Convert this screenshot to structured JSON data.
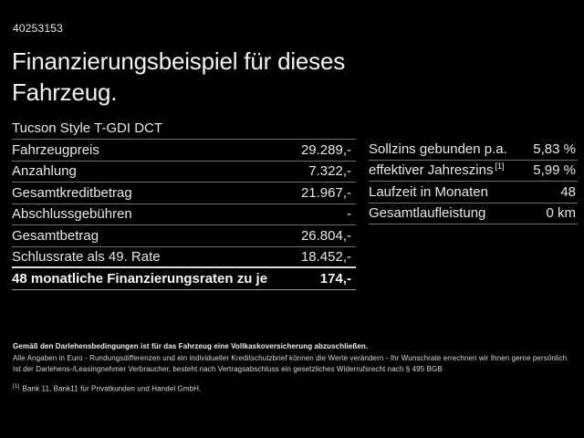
{
  "colors": {
    "background": "#000000",
    "text": "#f2f2f2",
    "separator": "#6f6f6f",
    "highlight_separator": "#dedede"
  },
  "header": {
    "reference_id": "40253153",
    "title_line1": "Finanzierungsbeispiel für dieses",
    "title_line2": "Fahrzeug."
  },
  "vehicle": {
    "model": "Tucson Style T-GDI DCT"
  },
  "finance_table": {
    "rows": [
      {
        "label": "Fahrzeugpreis",
        "value": "29.289,-"
      },
      {
        "label": "Anzahlung",
        "value": "7.322,-"
      },
      {
        "label": "Gesamtkreditbetrag",
        "value": "21.967,-"
      },
      {
        "label": "Abschlussgebühren",
        "value": "-"
      },
      {
        "label": "Gesamtbetrag",
        "value": "26.804,-"
      },
      {
        "label": "Schlussrate als 49. Rate",
        "value": "18.452,-"
      },
      {
        "label": "48 monatliche Finanzierungsraten zu je",
        "value": "174,-"
      }
    ]
  },
  "conditions_table": {
    "rows": [
      {
        "label": "Sollzins gebunden p.a.",
        "value": "5,83 %"
      },
      {
        "label": "effektiver Jahreszins",
        "sup": "[1]",
        "value": "5,99 %"
      },
      {
        "label": "Laufzeit in Monaten",
        "value": "48"
      },
      {
        "label": "Gesamtlaufleistung",
        "value": "0 km"
      }
    ]
  },
  "footer": {
    "line1": "Gemäß den Darlehensbedingungen ist für das Fahrzeug eine Vollkaskoversicherung abzuschließen.",
    "line2": "Alle Angaben in Euro - Rundungsdifferenzen und ein individueller Kreditschutzbrief können die Werte verändern - Ihr Wunschrate errechnen wir Ihnen gerne persönlich",
    "line3": "Ist der Darlehens-/Leasingnehmer Verbraucher, besteht nach Vertragsabschluss ein gesetzliches Widerrufsrecht nach § 495 BGB",
    "footnote_marker": "[1]",
    "footnote_text": "Bank 11, Bank11 für Privatkunden und Handel GmbH."
  }
}
